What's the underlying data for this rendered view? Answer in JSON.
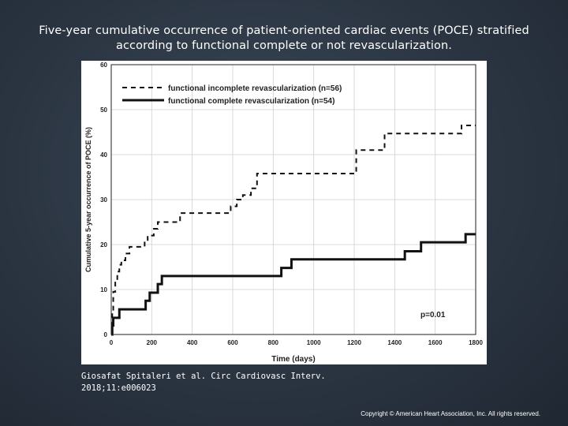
{
  "slide": {
    "title_line1": "Five-year cumulative occurrence of patient-oriented cardiac events (POCE) stratified",
    "title_line2": "according to functional complete or not revascularization.",
    "citation_line1": "Giosafat Spitaleri et al. Circ Cardiovasc Interv.",
    "citation_line2": "2018;11:e006023",
    "copyright": "Copyright © American Heart Association, Inc. All rights reserved."
  },
  "chart_data": {
    "type": "line",
    "step": true,
    "xlabel": "Time (days)",
    "ylabel": "Cumulative 5-year occurrence of POCE (%)",
    "xlim": [
      0,
      1800
    ],
    "ylim": [
      0,
      60
    ],
    "xticks": [
      0,
      200,
      400,
      600,
      800,
      1000,
      1200,
      1400,
      1600,
      1800
    ],
    "yticks": [
      0,
      10,
      20,
      30,
      40,
      50,
      60
    ],
    "grid": true,
    "legend_position": "top-left",
    "annotation": "p=0.01",
    "series": [
      {
        "name": "functional incomplete revascularization (n=56)",
        "line_style": "dashed",
        "x": [
          0,
          5,
          10,
          20,
          30,
          40,
          50,
          70,
          90,
          120,
          165,
          180,
          210,
          230,
          250,
          320,
          340,
          560,
          590,
          620,
          650,
          690,
          720,
          1190,
          1210,
          1330,
          1350,
          1700,
          1730,
          1800
        ],
        "y": [
          0,
          5.5,
          9.5,
          12,
          14,
          15.5,
          16.5,
          18,
          19.5,
          19.5,
          21,
          22,
          23.5,
          25,
          25,
          25,
          27,
          27,
          28.5,
          30,
          31,
          32.5,
          35.8,
          35.8,
          41,
          41,
          44.7,
          44.7,
          46.5,
          46.5
        ]
      },
      {
        "name": "functional complete revascularization (n=54)",
        "line_style": "solid",
        "x": [
          0,
          5,
          10,
          40,
          170,
          190,
          230,
          250,
          840,
          890,
          1450,
          1530,
          1750,
          1800
        ],
        "y": [
          0,
          2,
          3.7,
          5.6,
          7.5,
          9.3,
          11.2,
          13,
          14.8,
          16.7,
          18.5,
          20.5,
          22.3,
          22.3
        ]
      }
    ]
  }
}
